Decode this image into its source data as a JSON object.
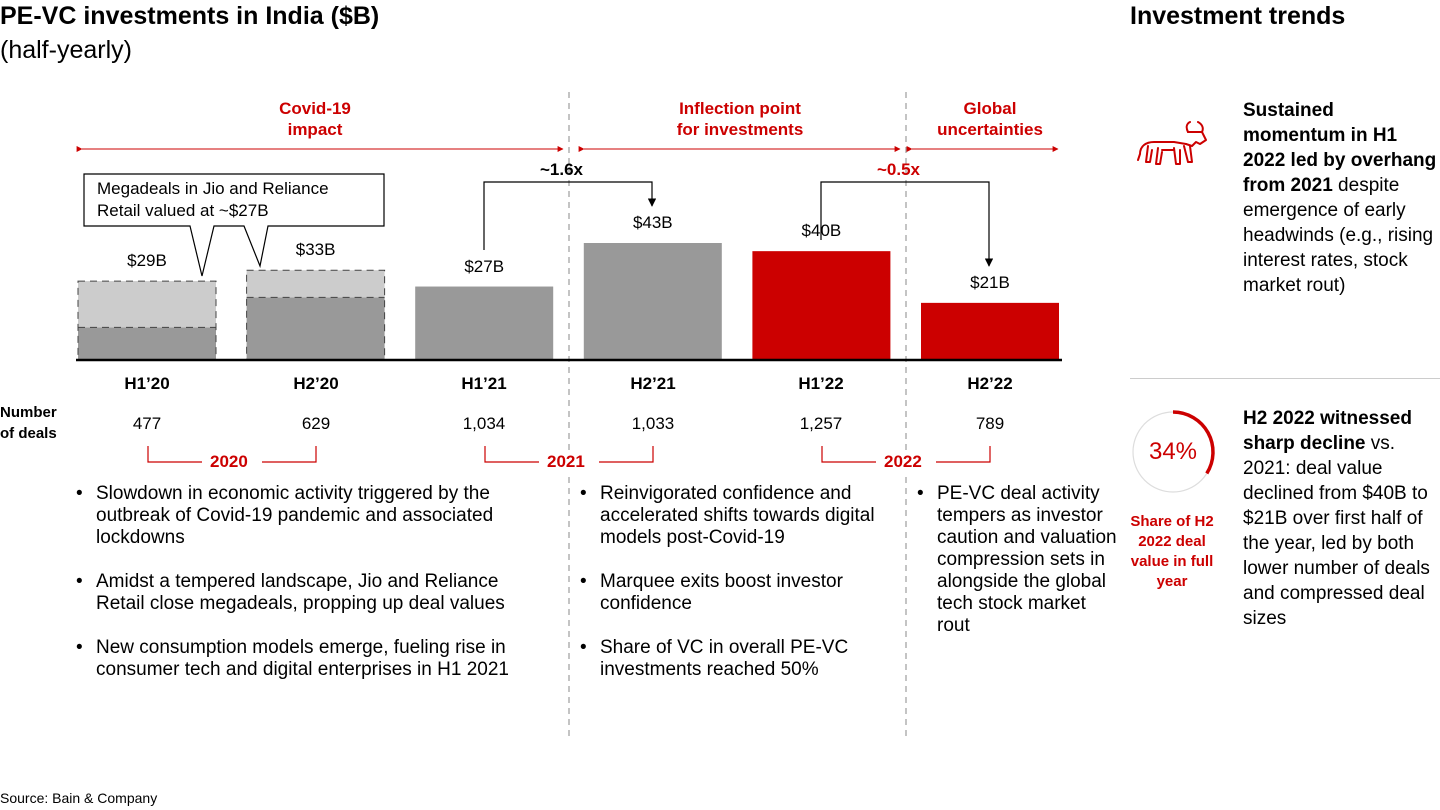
{
  "title": "PE-VC investments in India ($B)",
  "subtitle": "(half-yearly)",
  "right_title": "Investment trends",
  "colors": {
    "accent": "#cc0000",
    "gray": "#999999",
    "light_gray": "#cccccc",
    "dark_gray": "#999999"
  },
  "periods": [
    {
      "label_line1": "Covid-19",
      "label_line2": "impact"
    },
    {
      "label_line1": "Inflection point",
      "label_line2": "for investments"
    },
    {
      "label_line1": "Global",
      "label_line2": "uncertainties"
    }
  ],
  "callout_text_line1": "Megadeals in Jio and Reliance",
  "callout_text_line2": "Retail valued at ~$27B",
  "growth_labels": [
    "~1.6x",
    "~0.5x"
  ],
  "deals_label_line1": "Number",
  "deals_label_line2": "of deals",
  "years": [
    "2020",
    "2021",
    "2022"
  ],
  "chart_data": {
    "type": "bar",
    "title": "PE-VC investments in India ($B)",
    "subtitle": "(half-yearly)",
    "ylabel": "$B",
    "categories": [
      "H1’20",
      "H2’20",
      "H1’21",
      "H2’21",
      "H1’22",
      "H2’22"
    ],
    "values": [
      29,
      33,
      27,
      43,
      40,
      21
    ],
    "value_labels": [
      "$29B",
      "$33B",
      "$27B",
      "$43B",
      "$40B",
      "$21B"
    ],
    "megadeal_portion": [
      17,
      10,
      0,
      0,
      0,
      0
    ],
    "deals": [
      "477",
      "629",
      "1,034",
      "1,033",
      "1,257",
      "789"
    ],
    "bar_styles": [
      "gray-with-megadeal",
      "gray-with-megadeal",
      "gray",
      "gray",
      "red",
      "red"
    ],
    "ylim": [
      0,
      48
    ]
  },
  "bullets": {
    "col2020": [
      "Slowdown in economic activity triggered by the outbreak of Covid-19 pandemic and associated lockdowns",
      "Amidst a tempered landscape, Jio and Reliance Retail close megadeals, propping up deal values",
      "New consumption models emerge, fueling rise in consumer tech and digital enterprises in H1 2021"
    ],
    "col2021": [
      "Reinvigorated confidence and accelerated shifts towards digital models post-Covid-19",
      "Marquee exits boost investor confidence",
      "Share of VC in overall PE-VC investments reached 50%"
    ],
    "col2022": [
      "PE-VC deal activity tempers as investor caution and valuation compression sets in alongside the global tech stock market rout"
    ]
  },
  "trend1": {
    "bold": "Sustained momentum in H1 2022 led by overhang from 2021",
    "rest": " despite emergence of early headwinds (e.g., rising interest rates, stock market rout)",
    "icon": "bull-icon"
  },
  "trend2": {
    "bold": "H2 2022 witnessed sharp decline",
    "rest": " vs. 2021: deal value declined from $40B to $21B over first half of the year, led by both lower number of deals and compressed deal sizes"
  },
  "share": {
    "percent_text": "34%",
    "fraction": 0.34,
    "label": "Share of H2 2022 deal value in full year"
  },
  "source": "Source: Bain & Company"
}
